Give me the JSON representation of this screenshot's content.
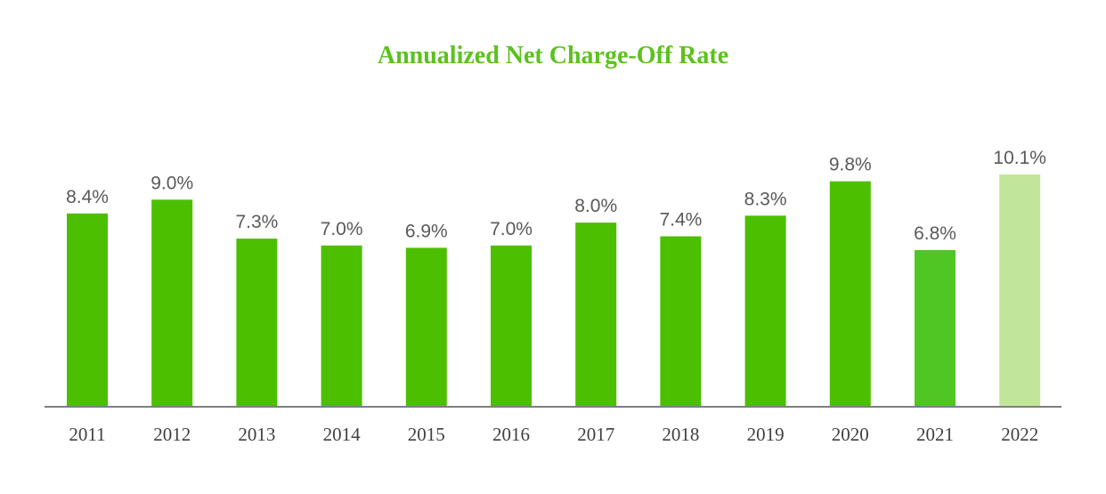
{
  "chart_data": {
    "type": "bar",
    "title": "Annualized Net Charge-Off Rate",
    "categories": [
      "2011",
      "2012",
      "2013",
      "2014",
      "2015",
      "2016",
      "2017",
      "2018",
      "2019",
      "2020",
      "2021",
      "2022"
    ],
    "values": [
      8.4,
      9.0,
      7.3,
      7.0,
      6.9,
      7.0,
      8.0,
      7.4,
      8.3,
      9.8,
      6.8,
      10.1
    ],
    "data_labels": [
      "8.4%",
      "9.0%",
      "7.3%",
      "7.0%",
      "6.9%",
      "7.0%",
      "8.0%",
      "7.4%",
      "8.3%",
      "9.8%",
      "6.8%",
      "10.1%"
    ],
    "bar_colors": [
      "#4cbf00",
      "#4cbf00",
      "#4cbf00",
      "#4cbf00",
      "#4cbf00",
      "#4cbf00",
      "#4cbf00",
      "#4cbf00",
      "#4cbf00",
      "#4cbf00",
      "#4fc623",
      "#c1e69a"
    ],
    "title_color": "#5cc21c",
    "axis_color": "#7f7f7f",
    "xlabel": "",
    "ylabel": "",
    "ylim": [
      0,
      10.4
    ],
    "grid": false,
    "legend": "none"
  }
}
